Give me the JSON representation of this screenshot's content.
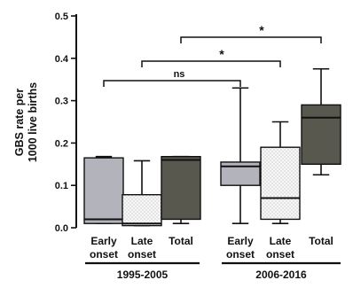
{
  "chart_data": {
    "type": "box",
    "ylabel": "GBS rate per\n1000 live births",
    "ylim": [
      0,
      0.5
    ],
    "yticks": [
      "0.0",
      "0.1",
      "0.2",
      "0.3",
      "0.4",
      "0.5"
    ],
    "groups": [
      {
        "label": "1995-2005",
        "boxes": [
          {
            "label": "Early\nonset",
            "color": "#b3b3bb",
            "fill": "solid",
            "min": 0.01,
            "q1": 0.01,
            "median": 0.02,
            "q3": 0.165,
            "max": 0.168
          },
          {
            "label": "Late\nonset",
            "color": "#f5f5f5",
            "fill": "dotted",
            "min": 0.005,
            "q1": 0.005,
            "median": 0.01,
            "q3": 0.078,
            "max": 0.158
          },
          {
            "label": "Total",
            "color": "#58584f",
            "fill": "solid",
            "min": 0.01,
            "q1": 0.02,
            "median": 0.16,
            "q3": 0.168,
            "max": 0.168
          }
        ]
      },
      {
        "label": "2006-2016",
        "boxes": [
          {
            "label": "Early\nonset",
            "color": "#b3b3bb",
            "fill": "solid",
            "min": 0.01,
            "q1": 0.1,
            "median": 0.145,
            "q3": 0.155,
            "max": 0.33
          },
          {
            "label": "Late\nonset",
            "color": "#f5f5f5",
            "fill": "dotted",
            "min": 0.01,
            "q1": 0.02,
            "median": 0.07,
            "q3": 0.19,
            "max": 0.25
          },
          {
            "label": "Total",
            "color": "#58584f",
            "fill": "solid",
            "min": 0.125,
            "q1": 0.15,
            "median": 0.26,
            "q3": 0.29,
            "max": 0.375
          }
        ]
      }
    ],
    "comparisons": [
      {
        "from": 0,
        "to": 3,
        "label": "ns"
      },
      {
        "from": 1,
        "to": 4,
        "label": "*"
      },
      {
        "from": 2,
        "to": 5,
        "label": "*"
      }
    ]
  }
}
